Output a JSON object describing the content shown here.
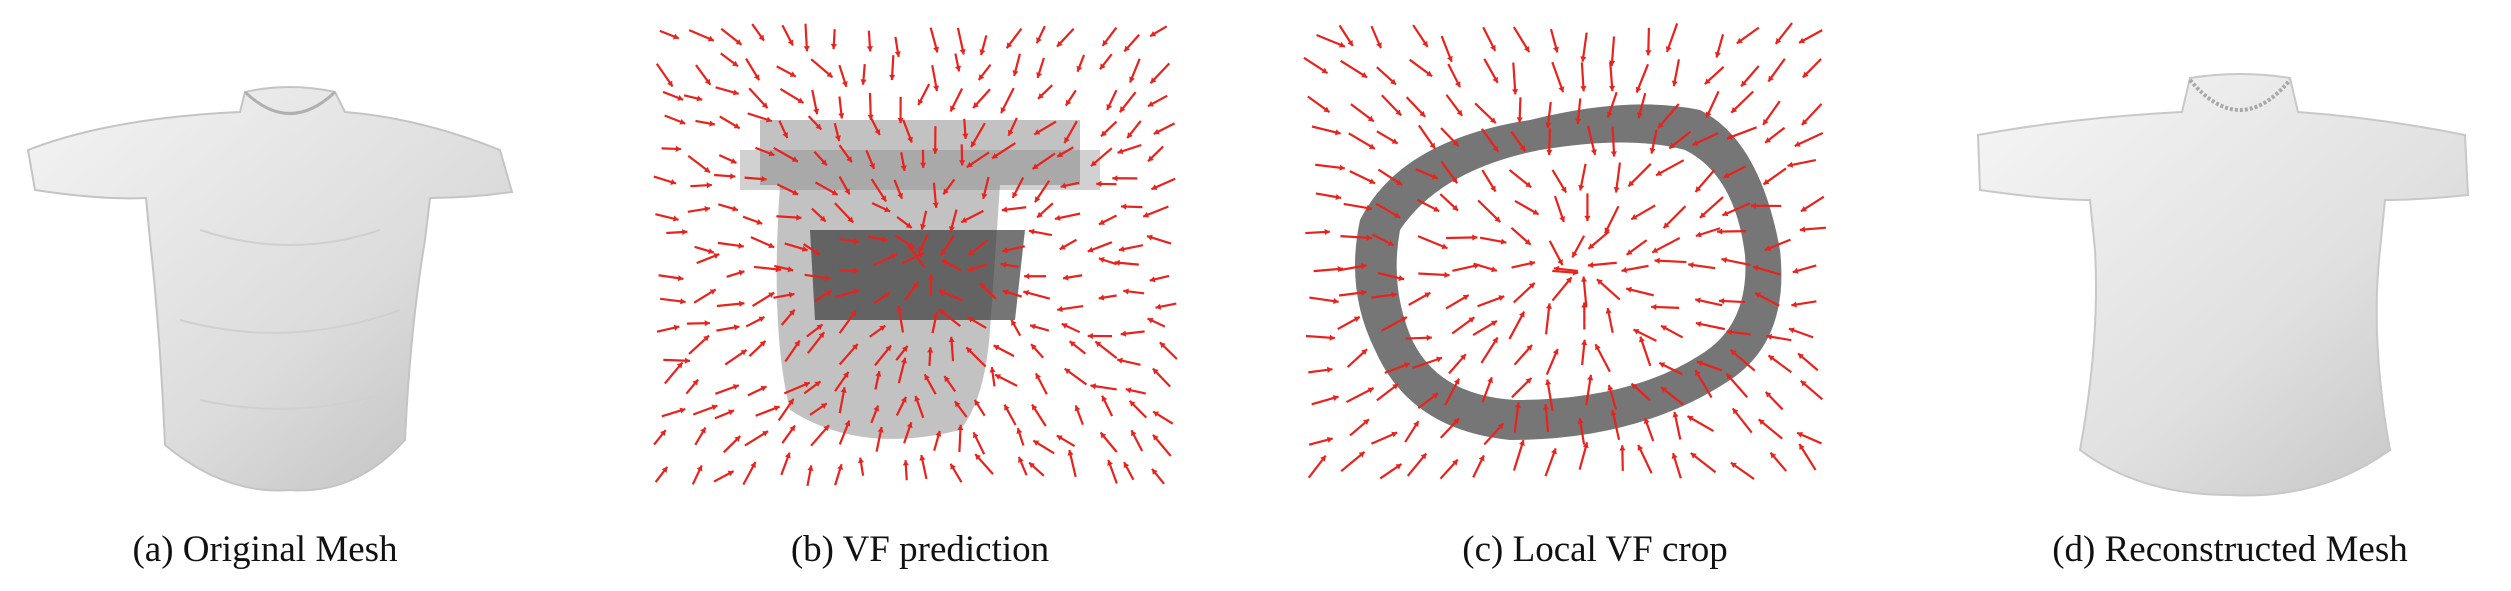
{
  "figure": {
    "panels": [
      {
        "id": "a",
        "caption": "(a) Original Mesh"
      },
      {
        "id": "b",
        "caption": "(b) VF prediction"
      },
      {
        "id": "c",
        "caption": "(c) Local VF crop"
      },
      {
        "id": "d",
        "caption": "(d) Reconstructed Mesh"
      }
    ],
    "colors": {
      "arrow": "#e8221c",
      "mesh_light": "#e6e6e6",
      "mesh_shade": "#9a9a9a",
      "mesh_dark": "#4a4a4a"
    }
  }
}
